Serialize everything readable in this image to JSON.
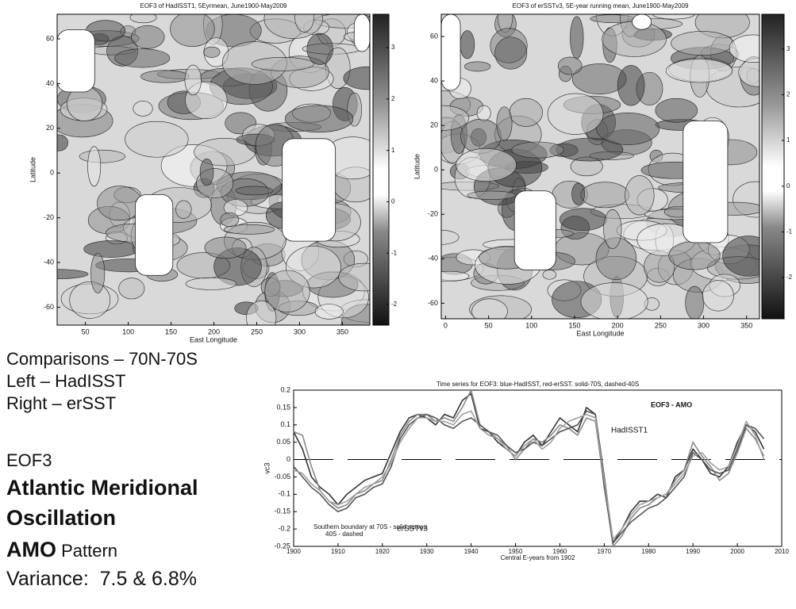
{
  "chart_data": [
    {
      "type": "contour",
      "title": "EOF3 of HadISST1, 5Eyrmean, June1900-May2009",
      "xlabel": "East Longitude",
      "ylabel": "Latitude",
      "xlim": [
        17,
        382
      ],
      "xticks": [
        50,
        100,
        150,
        200,
        250,
        300,
        350
      ],
      "ylim": [
        -68,
        71
      ],
      "yticks": [
        -60,
        -40,
        -20,
        0,
        20,
        40,
        60
      ],
      "clim": [
        -2.4,
        3.65
      ],
      "cticks": [
        -2,
        -1,
        0,
        1,
        2,
        3
      ]
    },
    {
      "type": "contour",
      "title": "EOF3 of erSSTv3, 5E-year running mean, June1900-May2009",
      "xlabel": "East Longitude",
      "ylabel": "Latitude",
      "xlim": [
        -5,
        365
      ],
      "xticks": [
        0,
        50,
        100,
        150,
        200,
        250,
        300,
        350
      ],
      "ylim": [
        -67,
        70
      ],
      "yticks": [
        -60,
        -40,
        -20,
        0,
        20,
        40,
        60
      ],
      "clim": [
        -2.9,
        3.76
      ],
      "cticks": [
        -2,
        -1,
        0,
        1,
        2,
        3
      ]
    },
    {
      "type": "line",
      "title": "Time series for EOF3: blue-HadISST, red-erSST. solid-70S, dashed-40S",
      "xlabel": "Central E-years from 1902",
      "ylabel": "vc3",
      "annotations": [
        "EOF3 - AMO",
        "HadISST1",
        "erSSTv3",
        "Southern boundary at 70S - solid curves",
        "40S - dashed"
      ],
      "xlim": [
        1900,
        2010
      ],
      "xticks": [
        1900,
        1910,
        1920,
        1930,
        1940,
        1950,
        1960,
        1970,
        1980,
        1990,
        2000,
        2010
      ],
      "ylim": [
        -0.25,
        0.2
      ],
      "yticks": [
        -0.25,
        -0.2,
        -0.15,
        -0.1,
        -0.05,
        0,
        0.05,
        0.1,
        0.15,
        0.2
      ],
      "x": [
        1900,
        1902,
        1904,
        1906,
        1908,
        1910,
        1912,
        1914,
        1916,
        1918,
        1920,
        1922,
        1924,
        1926,
        1928,
        1930,
        1932,
        1934,
        1936,
        1938,
        1940,
        1942,
        1944,
        1946,
        1948,
        1950,
        1952,
        1954,
        1956,
        1958,
        1960,
        1962,
        1964,
        1966,
        1968,
        1970,
        1972,
        1974,
        1976,
        1978,
        1980,
        1982,
        1984,
        1986,
        1988,
        1990,
        1992,
        1994,
        1996,
        1998,
        2000,
        2002,
        2004,
        2006
      ],
      "series": [
        {
          "color": "#333333",
          "values": [
            0.08,
            0.03,
            -0.05,
            -0.08,
            -0.1,
            -0.13,
            -0.1,
            -0.08,
            -0.06,
            -0.05,
            -0.04,
            0.02,
            0.08,
            0.12,
            0.13,
            0.12,
            0.1,
            0.13,
            0.12,
            0.17,
            0.19,
            0.09,
            0.08,
            0.05,
            0.03,
            0.01,
            0.05,
            0.07,
            0.04,
            0.08,
            0.12,
            0.1,
            0.08,
            0.15,
            0.13,
            -0.05,
            -0.24,
            -0.2,
            -0.15,
            -0.12,
            -0.12,
            -0.1,
            -0.11,
            -0.05,
            -0.03,
            0.03,
            0,
            -0.04,
            -0.05,
            -0.02,
            0.05,
            0.1,
            0.08,
            0.03
          ]
        },
        {
          "color": "#8a8a8a",
          "values": [
            0.08,
            0.07,
            -0.02,
            -0.09,
            -0.12,
            -0.14,
            -0.13,
            -0.1,
            -0.09,
            -0.07,
            -0.06,
            0,
            0.07,
            0.11,
            0.13,
            0.13,
            0.11,
            0.12,
            0.11,
            0.15,
            0.2,
            0.1,
            0.08,
            0.06,
            0.04,
            0,
            0.03,
            0.06,
            0.05,
            0.07,
            0.1,
            0.09,
            0.07,
            0.12,
            0.11,
            -0.07,
            -0.25,
            -0.22,
            -0.17,
            -0.14,
            -0.13,
            -0.11,
            -0.1,
            -0.06,
            -0.03,
            0.05,
            0.01,
            -0.02,
            -0.06,
            -0.04,
            0.02,
            0.09,
            0.06,
            0.01
          ]
        },
        {
          "color": "#555555",
          "values": [
            -0.02,
            -0.05,
            -0.08,
            -0.1,
            -0.13,
            -0.15,
            -0.14,
            -0.11,
            -0.1,
            -0.08,
            -0.07,
            -0.02,
            0.06,
            0.1,
            0.12,
            0.13,
            0.12,
            0.1,
            0.09,
            0.11,
            0.12,
            0.1,
            0.08,
            0.07,
            0.04,
            0.02,
            0.03,
            0.05,
            0.04,
            0.06,
            0.08,
            0.09,
            0.1,
            0.14,
            0.13,
            -0.08,
            -0.24,
            -0.21,
            -0.18,
            -0.16,
            -0.14,
            -0.13,
            -0.11,
            -0.08,
            -0.05,
            0.02,
            0,
            -0.03,
            -0.04,
            -0.03,
            0.03,
            0.1,
            0.09,
            0.06
          ]
        },
        {
          "color": "#a0a0a0",
          "values": [
            -0.03,
            -0.04,
            -0.07,
            -0.09,
            -0.12,
            -0.13,
            -0.12,
            -0.1,
            -0.08,
            -0.07,
            -0.05,
            -0.01,
            0.05,
            0.09,
            0.12,
            0.12,
            0.11,
            0.11,
            0.1,
            0.13,
            0.14,
            0.09,
            0.07,
            0.06,
            0.03,
            0.01,
            0.04,
            0.06,
            0.03,
            0.05,
            0.09,
            0.11,
            0.12,
            0.13,
            0.12,
            -0.06,
            -0.23,
            -0.2,
            -0.16,
            -0.13,
            -0.12,
            -0.11,
            -0.1,
            -0.07,
            -0.04,
            0.01,
            0.02,
            -0.01,
            -0.03,
            -0.02,
            0.04,
            0.11,
            0.07,
            0
          ]
        }
      ]
    }
  ],
  "text": {
    "notes": [
      "Comparisons – 70N-70S",
      "Left – HadISST",
      "Right – erSST",
      "EOF3"
    ],
    "heading": [
      "Atlantic Meridional",
      "Oscillation"
    ],
    "amo": {
      "bold": "AMO",
      "rest": " Pattern"
    },
    "variance": "Variance:  7.5 & 6.8%"
  }
}
